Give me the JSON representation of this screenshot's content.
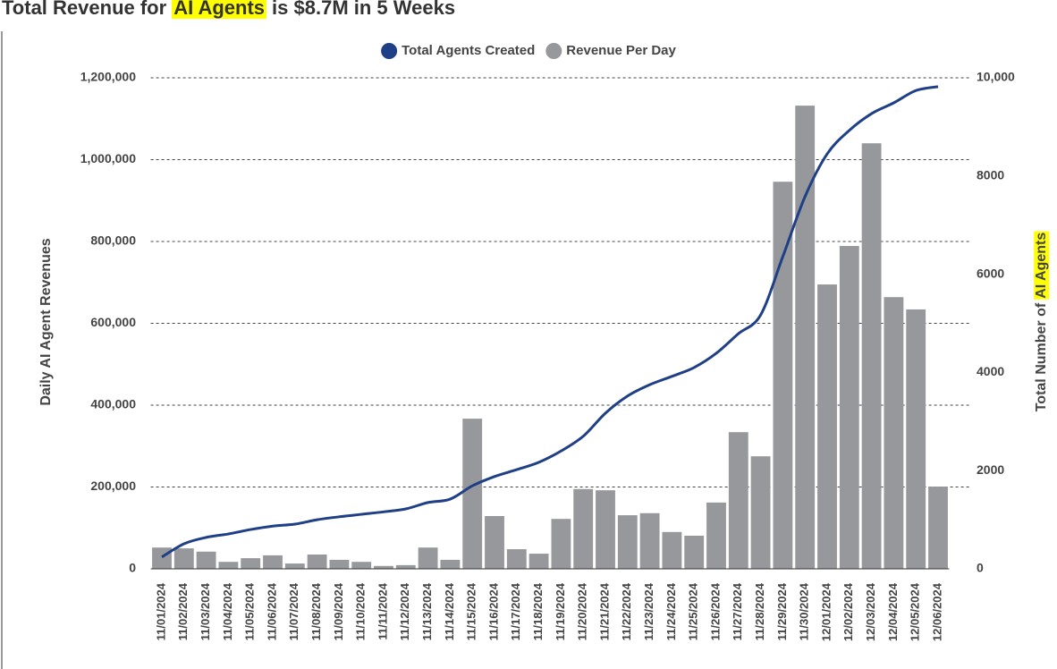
{
  "chart_data": {
    "type": "bar",
    "title_parts": [
      "Total Revenue for",
      "AI Agents",
      "is $8.7M in 5 Weeks"
    ],
    "y_label": "Daily AI Agent Revenues",
    "y2_label_parts": [
      "Total Number of",
      "AI Agents"
    ],
    "categories": [
      "11/01/2024",
      "11/02/2024",
      "11/03/2024",
      "11/04/2024",
      "11/05/2024",
      "11/06/2024",
      "11/07/2024",
      "11/08/2024",
      "11/09/2024",
      "11/10/2024",
      "11/11/2024",
      "11/12/2024",
      "11/13/2024",
      "11/14/2024",
      "11/15/2024",
      "11/16/2024",
      "11/17/2024",
      "11/18/2024",
      "11/19/2024",
      "11/20/2024",
      "11/21/2024",
      "11/22/2024",
      "11/23/2024",
      "11/24/2024",
      "11/25/2024",
      "11/26/2024",
      "11/27/2024",
      "11/28/2024",
      "11/29/2024",
      "11/30/2024",
      "12/01/2024",
      "12/02/2024",
      "12/03/2024",
      "12/04/2024",
      "12/05/2024",
      "12/06/2024"
    ],
    "series": [
      {
        "name": "Total Agents Created",
        "color": "#1f3f87",
        "type": "line",
        "axis": "y2",
        "values": [
          240,
          510,
          640,
          710,
          800,
          870,
          910,
          1000,
          1060,
          1110,
          1160,
          1220,
          1350,
          1420,
          1690,
          1880,
          2020,
          2170,
          2400,
          2700,
          3170,
          3520,
          3750,
          3920,
          4100,
          4390,
          4790,
          5170,
          6360,
          7580,
          8450,
          8930,
          9270,
          9490,
          9740,
          9820
        ]
      },
      {
        "name": "Revenue Per Day",
        "color": "#97989b",
        "type": "bar",
        "values": [
          52000,
          50000,
          42000,
          17000,
          26000,
          33000,
          13000,
          35000,
          22000,
          17000,
          7000,
          9000,
          52000,
          22000,
          367000,
          129000,
          48000,
          37000,
          122000,
          195000,
          192000,
          131000,
          136000,
          90000,
          81000,
          162000,
          334000,
          275000,
          946000,
          1132000,
          695000,
          789000,
          1040000,
          664000,
          634000,
          201000
        ]
      }
    ],
    "ylim": [
      0,
      1200000
    ],
    "yticks": [
      0,
      {
        "value": 200000,
        "label": "200,000"
      },
      {
        "value": 400000,
        "label": "400,000"
      },
      {
        "value": 600000,
        "label": "600,000"
      },
      {
        "value": 800000,
        "label": "800,000"
      },
      {
        "value": 1000000,
        "label": "1,000,000"
      },
      {
        "value": 1200000,
        "label": "1,200,000"
      }
    ],
    "y2lim": [
      0,
      10000
    ],
    "y2ticks": [
      0,
      2000,
      4000,
      6000,
      8000,
      {
        "value": 10000,
        "label": "10,000"
      }
    ],
    "grid": true,
    "legend": "top"
  }
}
